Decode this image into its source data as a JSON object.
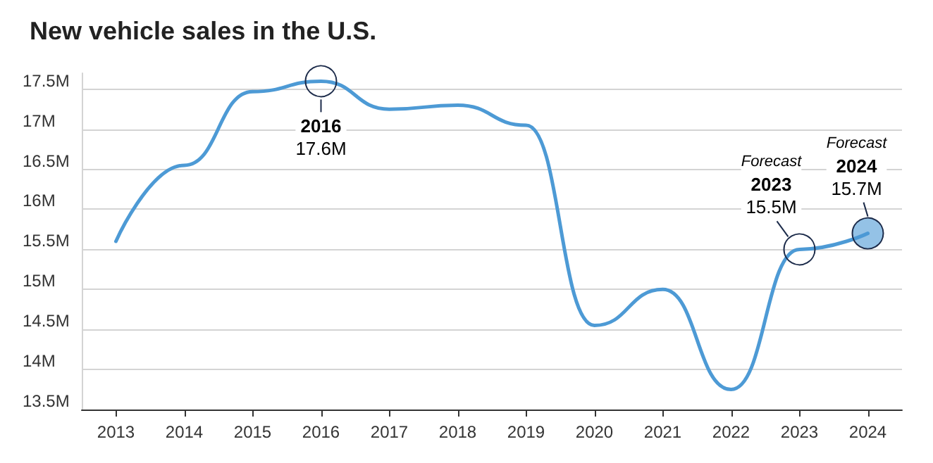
{
  "chart_data": {
    "type": "line",
    "title": "New vehicle sales in the U.S.",
    "categories": [
      "2013",
      "2014",
      "2015",
      "2016",
      "2017",
      "2018",
      "2019",
      "2020",
      "2021",
      "2022",
      "2023",
      "2024"
    ],
    "series": [
      {
        "color": "#4d9ad5",
        "values": [
          15.6,
          16.55,
          17.47,
          17.6,
          17.25,
          17.3,
          17.05,
          14.55,
          15.0,
          13.75,
          15.5,
          15.7
        ]
      }
    ],
    "ylim": [
      13.5,
      17.7
    ],
    "yticks": [
      {
        "value": 13.5,
        "label": "13.5M"
      },
      {
        "value": 14,
        "label": "14M"
      },
      {
        "value": 14.5,
        "label": "14.5M"
      },
      {
        "value": 15,
        "label": "15M"
      },
      {
        "value": 15.5,
        "label": "15.5M"
      },
      {
        "value": 16,
        "label": "16M"
      },
      {
        "value": 16.5,
        "label": "16.5M"
      },
      {
        "value": 17,
        "label": "17M"
      },
      {
        "value": 17.5,
        "label": "17.5M"
      }
    ],
    "grid": "y",
    "marker": "none",
    "line_style": "solid",
    "annotations": [
      {
        "text": "2016\n17.6M",
        "x": "2016",
        "y": 17.6
      },
      {
        "text": "Forecast\n2023\n15.5M",
        "x": "2023",
        "y": 15.5
      },
      {
        "text": "Forecast\n2024\n15.7M",
        "x": "2024",
        "y": 15.7
      }
    ]
  }
}
